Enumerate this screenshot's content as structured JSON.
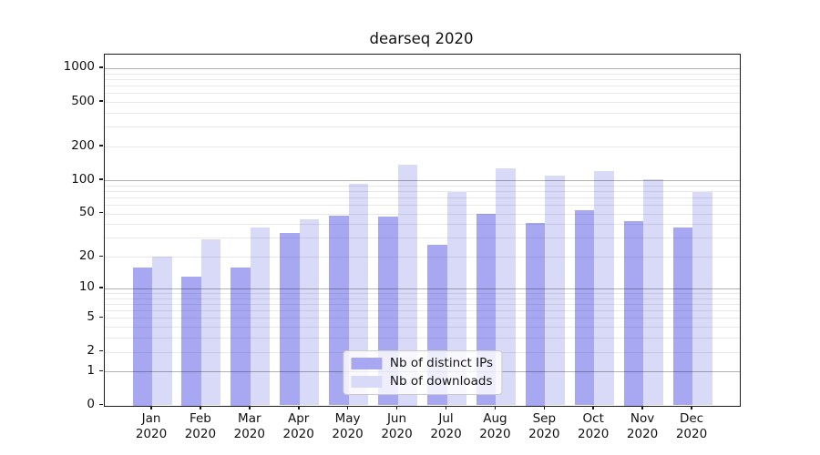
{
  "figure": {
    "background": "#ffffff"
  },
  "legend": {
    "items": [
      {
        "label": "Nb of distinct IPs",
        "color": "#a8a8f2"
      },
      {
        "label": "Nb of downloads",
        "color": "#d9d9f8"
      }
    ]
  },
  "chart_data": {
    "type": "bar",
    "title": "dearseq 2020",
    "categories": [
      "Jan",
      "Feb",
      "Mar",
      "Apr",
      "May",
      "Jun",
      "Jul",
      "Aug",
      "Sep",
      "Oct",
      "Nov",
      "Dec"
    ],
    "x_tick_year": "2020",
    "series": [
      {
        "name": "Nb of distinct IPs",
        "color": "#a8a8f2",
        "values": [
          16,
          13,
          16,
          33,
          48,
          47,
          26,
          50,
          41,
          54,
          43,
          37
        ]
      },
      {
        "name": "Nb of downloads",
        "color": "#d9d9f8",
        "values": [
          20,
          29,
          37,
          44,
          93,
          139,
          78,
          128,
          110,
          120,
          101,
          78
        ]
      }
    ],
    "yscale": "log1p",
    "ylim": [
      0,
      1310
    ],
    "yticks": [
      0,
      1,
      2,
      5,
      10,
      20,
      50,
      100,
      200,
      500,
      1000
    ],
    "major_gridlines": [
      1,
      10,
      100,
      1000
    ],
    "minor_gridlines": [
      2,
      3,
      4,
      5,
      6,
      7,
      8,
      9,
      20,
      30,
      40,
      50,
      60,
      70,
      80,
      90,
      200,
      300,
      400,
      500,
      600,
      700,
      800,
      900
    ],
    "grid": "on",
    "legend_position": "lower center"
  }
}
